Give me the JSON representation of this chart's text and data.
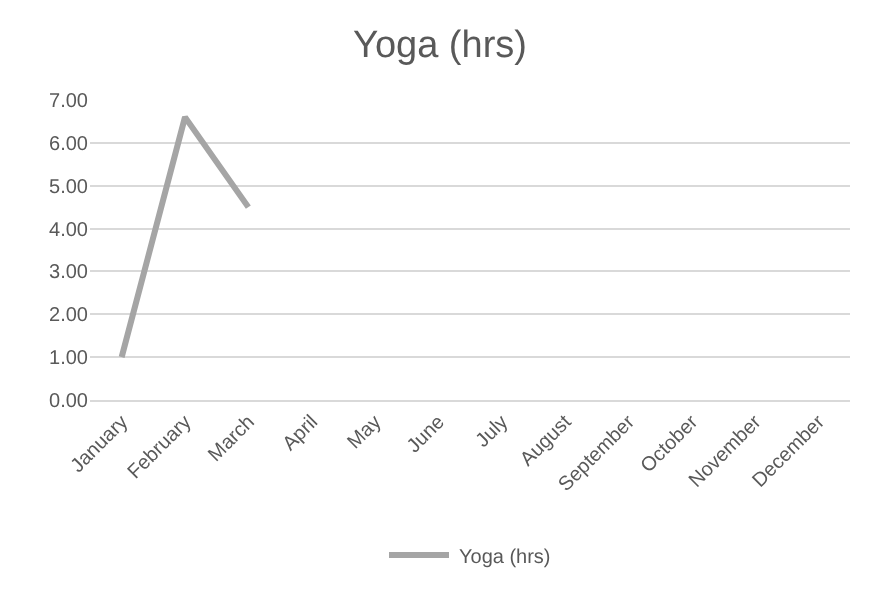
{
  "chart_data": {
    "type": "line",
    "title": "Yoga (hrs)",
    "categories": [
      "January",
      "February",
      "March",
      "April",
      "May",
      "June",
      "July",
      "August",
      "September",
      "October",
      "November",
      "December"
    ],
    "series": [
      {
        "name": "Yoga (hrs)",
        "color": "#a5a5a5",
        "values": [
          1.0,
          6.6,
          4.5,
          null,
          null,
          null,
          null,
          null,
          null,
          null,
          null,
          null
        ]
      }
    ],
    "ylim": [
      0,
      7
    ],
    "yticks": [
      {
        "value": 0,
        "label": "0.00"
      },
      {
        "value": 1,
        "label": "1.00"
      },
      {
        "value": 2,
        "label": "2.00"
      },
      {
        "value": 3,
        "label": "3.00"
      },
      {
        "value": 4,
        "label": "4.00"
      },
      {
        "value": 5,
        "label": "5.00"
      },
      {
        "value": 6,
        "label": "6.00"
      },
      {
        "value": 7,
        "label": "7.00"
      }
    ],
    "grid": "y",
    "legend": "bottom",
    "marker": "none",
    "line_style": "solid"
  }
}
